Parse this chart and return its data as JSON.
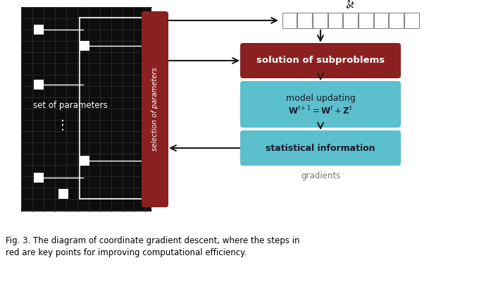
{
  "bg_color": "#ffffff",
  "grid_bg": "#0d0d0d",
  "grid_color": "#2a2a2a",
  "white_sq": "#ffffff",
  "red_box_color": "#8B2020",
  "teal_box_color": "#5BBFCC",
  "sel_param_color": "#8B2020",
  "arrow_color": "#1a1a1a",
  "text_color_white": "#ffffff",
  "text_color_dark": "#111111",
  "text_color_gray": "#777777",
  "caption_line1": "Fig. 3. The diagram of coordinate gradient descent, where the steps in",
  "caption_line2": "red are key points for improving computational efficiency.",
  "label_set_params": "set of parameters",
  "label_sel_params": "selection of parameters",
  "label_sol_sub": "solution of subproblems",
  "label_model_upd": "model updating",
  "label_stat_info": "statistical information",
  "label_gradients": "gradients",
  "fig_width": 6.8,
  "fig_height": 4.0,
  "dpi": 100
}
